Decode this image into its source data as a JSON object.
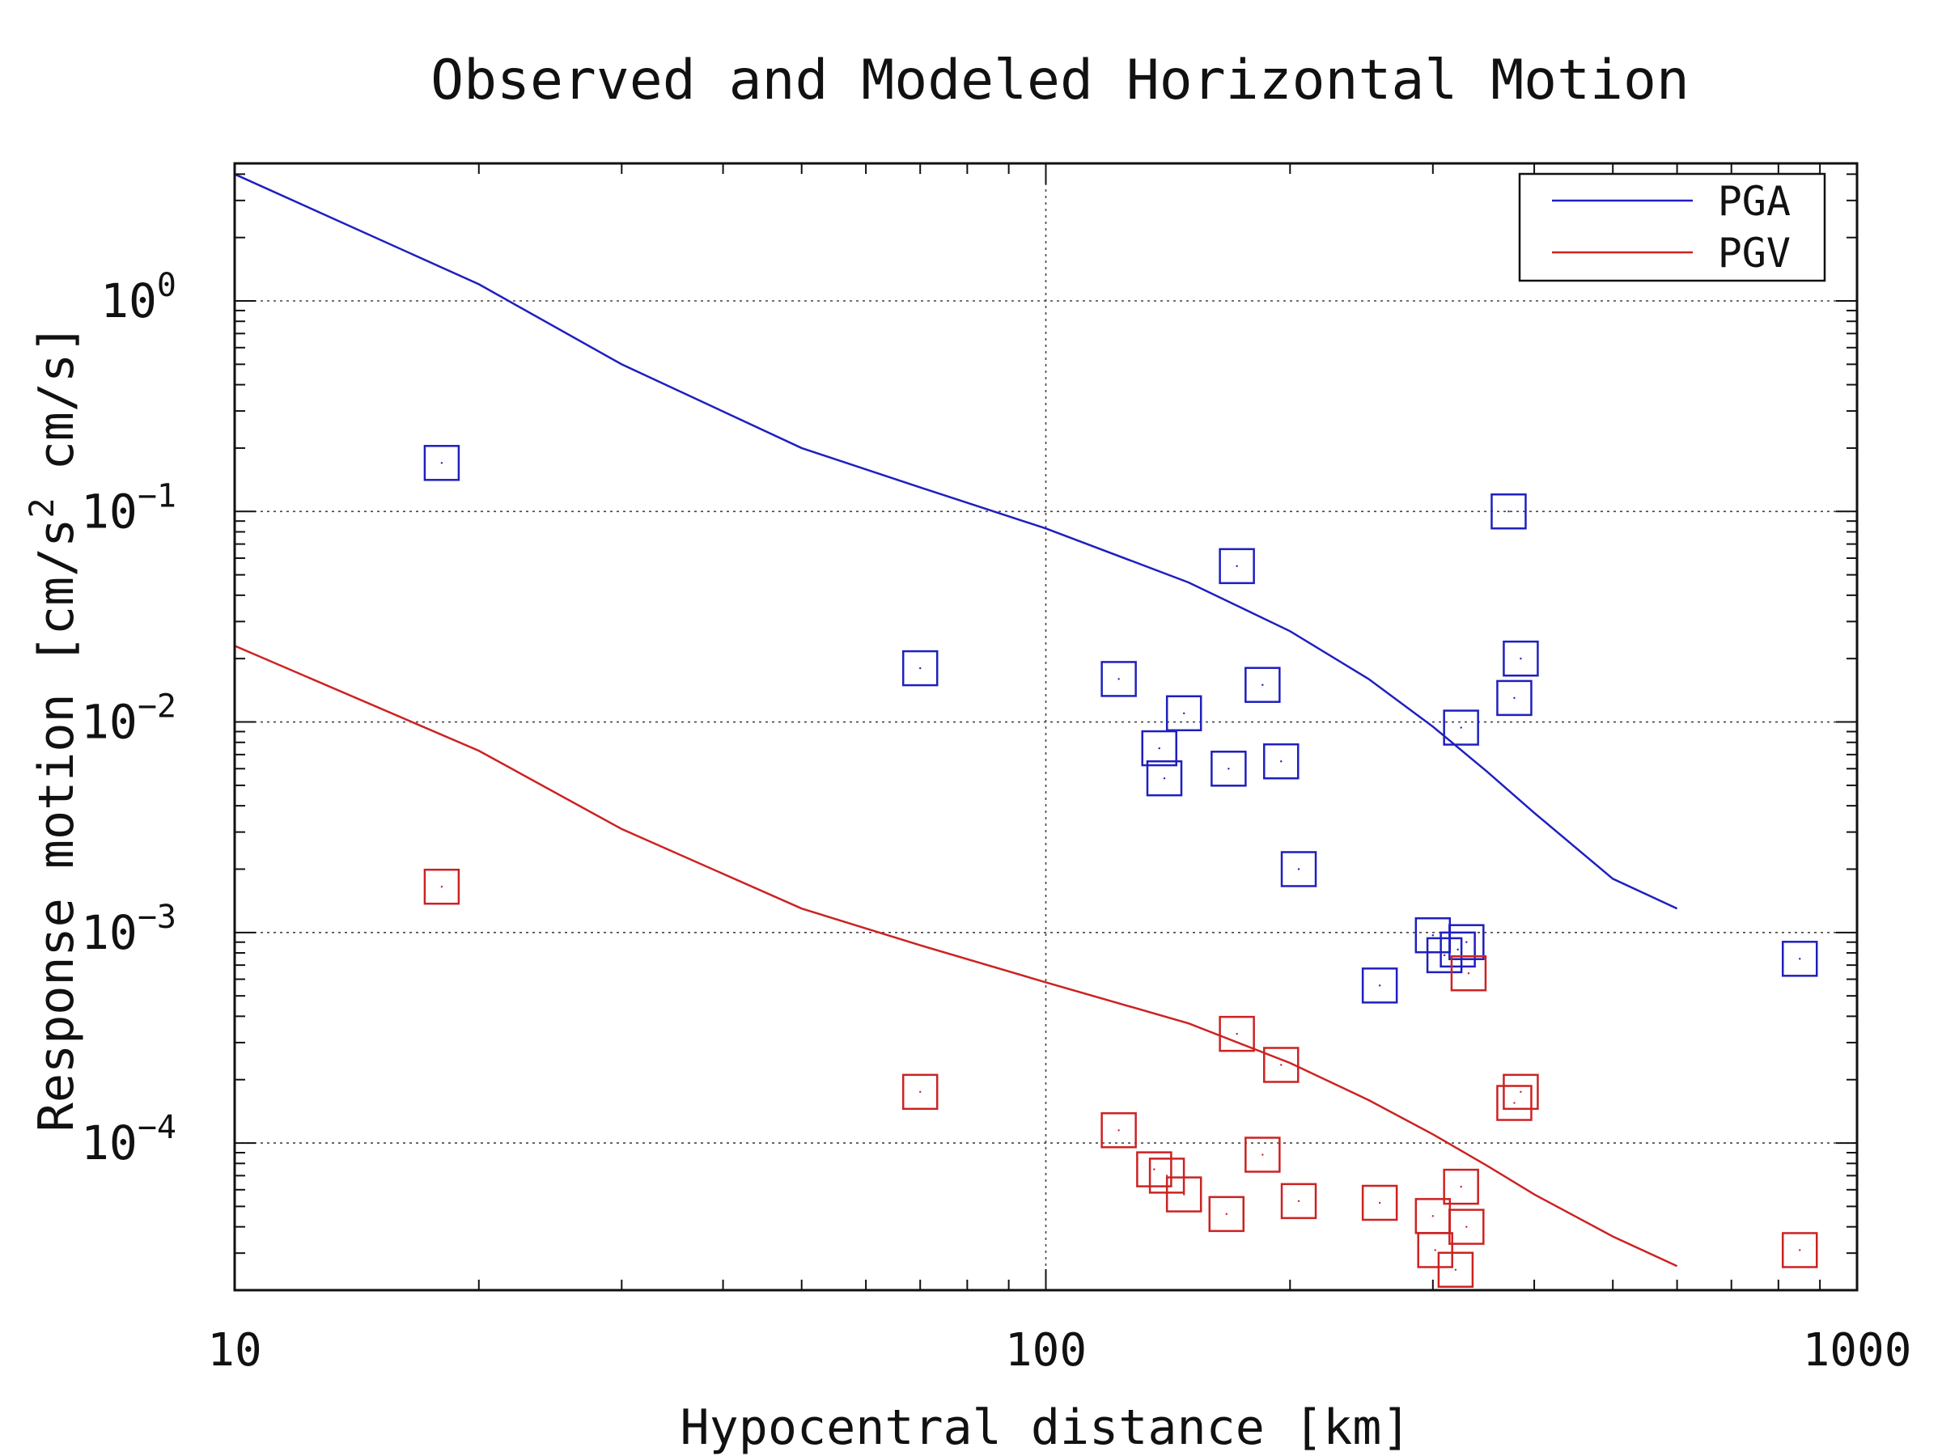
{
  "chart_data": {
    "type": "scatter",
    "title": "Observed and Modeled Horizontal Motion",
    "xlabel": "Hypocentral distance [km]",
    "ylabel": "Response motion [cm/s^2 cm/s]",
    "ylabel_parts": {
      "pre": "Response motion [cm/s",
      "sup": "2",
      "post": "cm/s]"
    },
    "x_scale": "log",
    "y_scale": "log",
    "xlim": [
      10,
      1000
    ],
    "ylim": [
      2e-05,
      4.5
    ],
    "x_ticks": [
      {
        "value": 10,
        "label": "10"
      },
      {
        "value": 100,
        "label": "100"
      },
      {
        "value": 1000,
        "label": "1000"
      }
    ],
    "y_ticks": [
      {
        "value": 1,
        "base": "10",
        "exp": "0"
      },
      {
        "value": 0.1,
        "base": "10",
        "exp": "−1"
      },
      {
        "value": 0.01,
        "base": "10",
        "exp": "−2"
      },
      {
        "value": 0.001,
        "base": "10",
        "exp": "−3"
      },
      {
        "value": 0.0001,
        "base": "10",
        "exp": "−4"
      }
    ],
    "grid": true,
    "legend": {
      "position": "top-right",
      "entries": [
        {
          "label": "PGA",
          "color": "#1f1fbf"
        },
        {
          "label": "PGV",
          "color": "#cc2222"
        }
      ]
    },
    "series": [
      {
        "name": "PGA",
        "kind": "line",
        "color": "#1f1fbf",
        "x": [
          10,
          20,
          30,
          50,
          70,
          100,
          150,
          200,
          250,
          300,
          350,
          400,
          500,
          600
        ],
        "y": [
          4.0,
          1.2,
          0.5,
          0.2,
          0.13,
          0.083,
          0.046,
          0.027,
          0.016,
          0.0095,
          0.0058,
          0.0037,
          0.0018,
          0.0013
        ]
      },
      {
        "name": "PGV",
        "kind": "line",
        "color": "#cc2222",
        "x": [
          10,
          20,
          30,
          50,
          70,
          100,
          150,
          200,
          250,
          300,
          350,
          400,
          500,
          600
        ],
        "y": [
          0.023,
          0.0073,
          0.0031,
          0.0013,
          0.00087,
          0.00058,
          0.00037,
          0.00024,
          0.00016,
          0.00011,
          7.8e-05,
          5.7e-05,
          3.6e-05,
          2.6e-05
        ]
      },
      {
        "name": "PGA",
        "kind": "markers",
        "color": "#1f1fbf",
        "x": [
          18,
          70,
          123,
          138,
          140,
          148,
          168,
          172,
          185,
          195,
          205,
          258,
          300,
          322,
          310,
          325,
          330,
          372,
          378
        ],
        "y": [
          0.17,
          0.018,
          0.016,
          0.0075,
          0.0054,
          0.011,
          0.006,
          0.055,
          0.015,
          0.0065,
          0.002,
          0.00056,
          0.00097,
          0.00083,
          0.00078,
          0.0094,
          0.0009,
          0.1,
          0.013
        ],
        "extra": [
          {
            "x": 385,
            "y": 0.02
          },
          {
            "x": 850,
            "y": 0.00075
          }
        ]
      },
      {
        "name": "PGV",
        "kind": "markers",
        "color": "#cc2222",
        "x": [
          18,
          70,
          123,
          136,
          141,
          148,
          167,
          172,
          185,
          195,
          205,
          258,
          300,
          302,
          320,
          325,
          330,
          332,
          378,
          385,
          850
        ],
        "y": [
          0.00165,
          0.000175,
          0.000115,
          7.5e-05,
          7e-05,
          5.7e-05,
          4.6e-05,
          0.00033,
          8.8e-05,
          0.000235,
          5.3e-05,
          5.2e-05,
          4.5e-05,
          3.1e-05,
          2.5e-05,
          6.2e-05,
          4e-05,
          0.00064,
          0.000155,
          0.000175,
          3.1e-05
        ]
      }
    ]
  }
}
